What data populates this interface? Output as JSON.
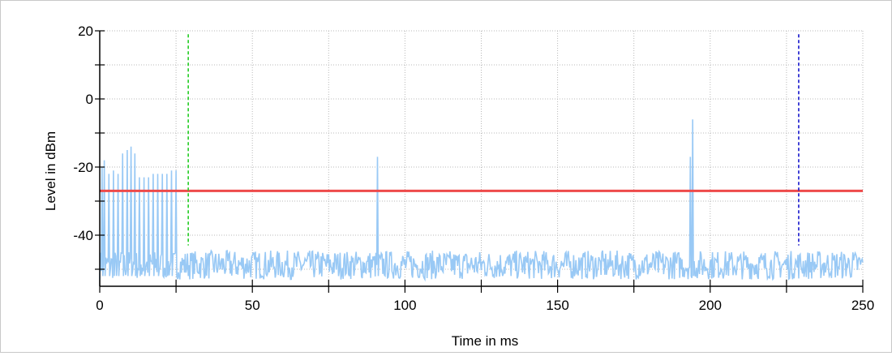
{
  "chart_data": {
    "type": "line",
    "title": "",
    "xlabel": "Time in ms",
    "ylabel": "Level in dBm",
    "xlim": [
      0,
      250
    ],
    "ylim": [
      -55,
      20
    ],
    "x_ticks": [
      0,
      50,
      100,
      150,
      200,
      250
    ],
    "y_ticks": [
      20,
      0,
      -20,
      -40
    ],
    "x_minor_step": 25,
    "y_minor_step": 10,
    "grid": true,
    "legend": "none",
    "colors": {
      "signal": "#99c9f5",
      "threshold": "#ee4a4a",
      "marker_green": "#22cc22",
      "marker_blue": "#1515cc",
      "grid": "#b8b8b8",
      "axis": "#000000"
    },
    "series": [
      {
        "role": "signal",
        "noise_floor": [
          -53,
          -43
        ],
        "bursts": [
          {
            "x": 0.8,
            "y": -20
          },
          {
            "x": 1.5,
            "y": -18
          },
          {
            "x": 3.0,
            "y": -22
          },
          {
            "x": 4.5,
            "y": -21
          },
          {
            "x": 6.0,
            "y": -22
          },
          {
            "x": 7.5,
            "y": -16
          },
          {
            "x": 9.0,
            "y": -15
          },
          {
            "x": 10.2,
            "y": -14
          },
          {
            "x": 11.5,
            "y": -16
          },
          {
            "x": 13.0,
            "y": -23
          },
          {
            "x": 14.5,
            "y": -23
          },
          {
            "x": 16.0,
            "y": -23
          },
          {
            "x": 17.5,
            "y": -22
          },
          {
            "x": 19.0,
            "y": -22
          },
          {
            "x": 20.5,
            "y": -22
          },
          {
            "x": 22.0,
            "y": -22
          },
          {
            "x": 23.5,
            "y": -21
          },
          {
            "x": 25.0,
            "y": -21
          },
          {
            "x": 91.0,
            "y": -17
          },
          {
            "x": 193.5,
            "y": -17
          },
          {
            "x": 194.2,
            "y": -6
          }
        ]
      },
      {
        "role": "threshold",
        "y": -27
      },
      {
        "role": "marker_green",
        "x": 29,
        "y_range": [
          -43,
          19
        ]
      },
      {
        "role": "marker_blue",
        "x": 229,
        "y_range": [
          -43,
          19
        ]
      }
    ]
  }
}
